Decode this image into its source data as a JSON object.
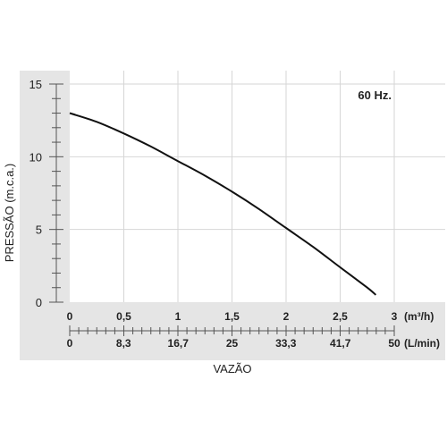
{
  "chart_data": {
    "type": "line",
    "annotation": "60 Hz.",
    "xlabel": "VAZÃO",
    "ylabel": "PRESSÃO (m.c.a.)",
    "ylim": [
      0,
      15
    ],
    "yticks": [
      0,
      5,
      10,
      15
    ],
    "xlim": [
      0,
      3
    ],
    "grid": true,
    "x_axis_m3h": {
      "unit": "(m³/h)",
      "ticks": [
        0,
        0.5,
        1,
        1.5,
        2,
        2.5,
        3
      ],
      "labels": [
        "0",
        "0,5",
        "1",
        "1,5",
        "2",
        "2,5",
        "3"
      ]
    },
    "x_axis_lmin": {
      "unit": "(L/min)",
      "ticks": [
        0,
        8.3,
        16.7,
        25,
        33.3,
        41.7,
        50
      ],
      "labels": [
        "0",
        "8,3",
        "16,7",
        "25",
        "33,3",
        "41,7",
        "50"
      ]
    },
    "series": [
      {
        "x": [
          0,
          0.25,
          0.5,
          0.75,
          1.0,
          1.25,
          1.5,
          1.75,
          2.0,
          2.25,
          2.5,
          2.75,
          2.83
        ],
        "y": [
          13.0,
          12.4,
          11.6,
          10.7,
          9.7,
          8.7,
          7.6,
          6.4,
          5.1,
          3.8,
          2.4,
          1.0,
          0.5
        ]
      }
    ]
  }
}
